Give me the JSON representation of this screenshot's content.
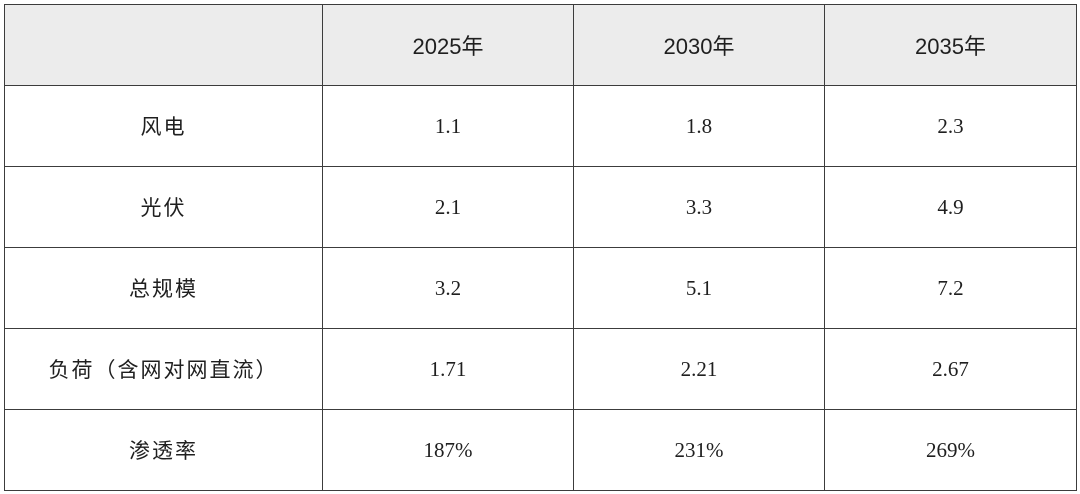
{
  "table": {
    "corner": "",
    "columns": [
      "2025年",
      "2030年",
      "2035年"
    ],
    "rows": [
      {
        "label": "风电",
        "values": [
          "1.1",
          "1.8",
          "2.3"
        ]
      },
      {
        "label": "光伏",
        "values": [
          "2.1",
          "3.3",
          "4.9"
        ]
      },
      {
        "label": "总规模",
        "values": [
          "3.2",
          "5.1",
          "7.2"
        ]
      },
      {
        "label": "负荷（含网对网直流）",
        "values": [
          "1.71",
          "2.21",
          "2.67"
        ]
      },
      {
        "label": "渗透率",
        "values": [
          "187%",
          "231%",
          "269%"
        ]
      }
    ]
  },
  "colors": {
    "header_background": "#ececec",
    "border": "#3c3c3c",
    "text": "#1f1f1f"
  }
}
